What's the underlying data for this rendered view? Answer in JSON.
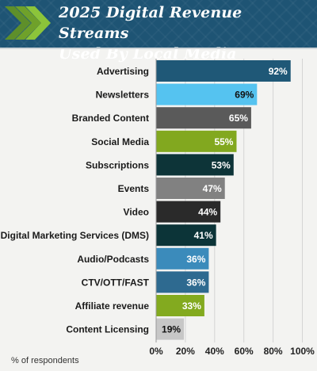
{
  "header": {
    "title": "2025 Digital Revenue Streams\nUsed By Local Media"
  },
  "footnote": "% of respondents",
  "colors": {
    "header_bg": "#1e5474",
    "chevron_green": "#7db52d",
    "grid": "#d4d4d4"
  },
  "chart_data": {
    "type": "bar",
    "orientation": "horizontal",
    "title": "2025 Digital Revenue Streams Used By Local Media",
    "xlabel": "% of respondents",
    "xlim": [
      0,
      100
    ],
    "xticks": [
      "0%",
      "20%",
      "40%",
      "60%",
      "80%",
      "100%"
    ],
    "grid": true,
    "categories": [
      "Advertising",
      "Newsletters",
      "Branded Content",
      "Social Media",
      "Subscriptions",
      "Events",
      "Video",
      "Digital Marketing Services (DMS)",
      "Audio/Podcasts",
      "CTV/OTT/FAST",
      "Affiliate revenue",
      "Content Licensing"
    ],
    "values": [
      92,
      69,
      65,
      55,
      53,
      47,
      44,
      41,
      36,
      36,
      33,
      19
    ],
    "value_labels": [
      "92%",
      "69%",
      "65%",
      "55%",
      "53%",
      "47%",
      "44%",
      "41%",
      "36%",
      "36%",
      "33%",
      "19%"
    ],
    "bar_colors": [
      "#1f5877",
      "#55c3f0",
      "#5a5a5a",
      "#82a81f",
      "#0d3438",
      "#818181",
      "#2a2a2a",
      "#0c3438",
      "#3b8bbb",
      "#2e6a90",
      "#83aa1f",
      "#c7c7c7"
    ],
    "label_colors": [
      "#ffffff",
      "#111111",
      "#ffffff",
      "#ffffff",
      "#ffffff",
      "#ffffff",
      "#ffffff",
      "#ffffff",
      "#ffffff",
      "#ffffff",
      "#ffffff",
      "#111111"
    ]
  }
}
